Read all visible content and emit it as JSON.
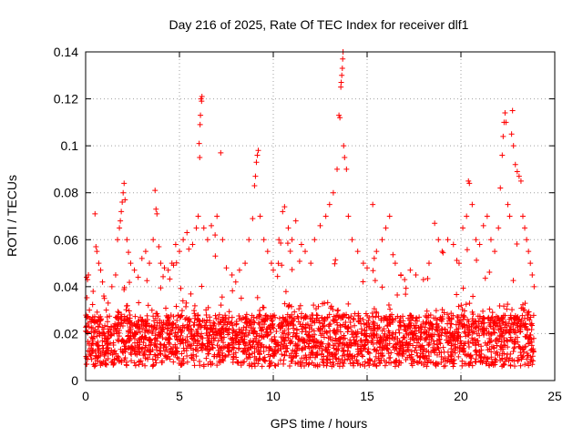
{
  "chart_data": {
    "type": "scatter",
    "title": "Day 216 of 2025, Rate Of TEC Index for receiver dlf1",
    "xlabel": "GPS time / hours",
    "ylabel": "ROTI / TECUs",
    "xlim": [
      0,
      25
    ],
    "ylim": [
      0,
      0.14
    ],
    "xticks": [
      0,
      5,
      10,
      15,
      20,
      25
    ],
    "yticks": [
      0,
      0.02,
      0.04,
      0.06,
      0.08,
      0.1,
      0.12,
      0.14
    ],
    "xtick_labels": [
      "0",
      "5",
      "10",
      "15",
      "20",
      "25"
    ],
    "ytick_labels": [
      "0",
      "0.02",
      "0.04",
      "0.06",
      "0.08",
      "0.1",
      "0.12",
      "0.14"
    ],
    "grid": true,
    "marker": "+",
    "color": "#ff0000",
    "series": [
      {
        "name": "ROTI",
        "points": [
          [
            0.05,
            0.044
          ],
          [
            0.1,
            0.043
          ],
          [
            0.15,
            0.045
          ],
          [
            0.2,
            0.03
          ],
          [
            0.3,
            0.025
          ],
          [
            0.4,
            0.038
          ],
          [
            0.5,
            0.071
          ],
          [
            0.55,
            0.057
          ],
          [
            0.6,
            0.055
          ],
          [
            0.7,
            0.05
          ],
          [
            0.8,
            0.047
          ],
          [
            0.9,
            0.042
          ],
          [
            1.0,
            0.035
          ],
          [
            1.1,
            0.03
          ],
          [
            1.2,
            0.033
          ],
          [
            1.4,
            0.04
          ],
          [
            1.6,
            0.045
          ],
          [
            1.7,
            0.06
          ],
          [
            1.8,
            0.065
          ],
          [
            1.85,
            0.068
          ],
          [
            1.9,
            0.072
          ],
          [
            1.95,
            0.076
          ],
          [
            2.0,
            0.08
          ],
          [
            2.05,
            0.084
          ],
          [
            2.1,
            0.077
          ],
          [
            2.2,
            0.06
          ],
          [
            2.4,
            0.05
          ],
          [
            2.6,
            0.047
          ],
          [
            2.8,
            0.044
          ],
          [
            3.0,
            0.052
          ],
          [
            3.2,
            0.055
          ],
          [
            3.4,
            0.05
          ],
          [
            3.6,
            0.06
          ],
          [
            3.7,
            0.081
          ],
          [
            3.75,
            0.073
          ],
          [
            3.8,
            0.071
          ],
          [
            3.9,
            0.057
          ],
          [
            4.0,
            0.05
          ],
          [
            4.2,
            0.048
          ],
          [
            4.4,
            0.047
          ],
          [
            4.6,
            0.05
          ],
          [
            4.8,
            0.058
          ],
          [
            5.0,
            0.055
          ],
          [
            5.2,
            0.06
          ],
          [
            5.4,
            0.063
          ],
          [
            5.5,
            0.056
          ],
          [
            5.7,
            0.058
          ],
          [
            5.9,
            0.065
          ],
          [
            6.0,
            0.07
          ],
          [
            6.05,
            0.101
          ],
          [
            6.08,
            0.095
          ],
          [
            6.1,
            0.109
          ],
          [
            6.12,
            0.113
          ],
          [
            6.15,
            0.12
          ],
          [
            6.18,
            0.119
          ],
          [
            6.2,
            0.121
          ],
          [
            6.3,
            0.065
          ],
          [
            6.5,
            0.06
          ],
          [
            6.7,
            0.066
          ],
          [
            6.9,
            0.062
          ],
          [
            7.0,
            0.07
          ],
          [
            7.2,
            0.097
          ],
          [
            7.3,
            0.06
          ],
          [
            7.5,
            0.048
          ],
          [
            7.8,
            0.045
          ],
          [
            8.0,
            0.042
          ],
          [
            8.2,
            0.047
          ],
          [
            8.5,
            0.05
          ],
          [
            8.7,
            0.06
          ],
          [
            8.9,
            0.069
          ],
          [
            9.0,
            0.083
          ],
          [
            9.05,
            0.087
          ],
          [
            9.1,
            0.093
          ],
          [
            9.15,
            0.096
          ],
          [
            9.2,
            0.098
          ],
          [
            9.3,
            0.07
          ],
          [
            9.5,
            0.06
          ],
          [
            9.7,
            0.055
          ],
          [
            9.9,
            0.05
          ],
          [
            10.0,
            0.047
          ],
          [
            10.3,
            0.06
          ],
          [
            10.5,
            0.072
          ],
          [
            10.6,
            0.074
          ],
          [
            10.8,
            0.065
          ],
          [
            11.0,
            0.06
          ],
          [
            11.2,
            0.068
          ],
          [
            11.5,
            0.058
          ],
          [
            11.7,
            0.055
          ],
          [
            12.0,
            0.05
          ],
          [
            12.2,
            0.06
          ],
          [
            12.5,
            0.066
          ],
          [
            12.8,
            0.07
          ],
          [
            13.0,
            0.075
          ],
          [
            13.2,
            0.08
          ],
          [
            13.4,
            0.09
          ],
          [
            13.5,
            0.113
          ],
          [
            13.55,
            0.112
          ],
          [
            13.6,
            0.125
          ],
          [
            13.62,
            0.127
          ],
          [
            13.65,
            0.13
          ],
          [
            13.68,
            0.133
          ],
          [
            13.7,
            0.137
          ],
          [
            13.72,
            0.14
          ],
          [
            13.75,
            0.1
          ],
          [
            13.8,
            0.095
          ],
          [
            13.9,
            0.09
          ],
          [
            14.0,
            0.07
          ],
          [
            14.2,
            0.06
          ],
          [
            14.5,
            0.055
          ],
          [
            14.8,
            0.05
          ],
          [
            15.0,
            0.048
          ],
          [
            15.3,
            0.075
          ],
          [
            15.5,
            0.055
          ],
          [
            15.8,
            0.06
          ],
          [
            16.0,
            0.065
          ],
          [
            16.2,
            0.07
          ],
          [
            16.5,
            0.05
          ],
          [
            16.8,
            0.045
          ],
          [
            17.0,
            0.043
          ],
          [
            17.3,
            0.047
          ],
          [
            17.6,
            0.045
          ],
          [
            18.0,
            0.043
          ],
          [
            18.3,
            0.05
          ],
          [
            18.6,
            0.067
          ],
          [
            18.8,
            0.06
          ],
          [
            19.0,
            0.055
          ],
          [
            19.3,
            0.06
          ],
          [
            19.6,
            0.058
          ],
          [
            19.9,
            0.05
          ],
          [
            20.1,
            0.065
          ],
          [
            20.3,
            0.07
          ],
          [
            20.4,
            0.085
          ],
          [
            20.45,
            0.084
          ],
          [
            20.6,
            0.075
          ],
          [
            20.8,
            0.06
          ],
          [
            21.0,
            0.058
          ],
          [
            21.2,
            0.066
          ],
          [
            21.4,
            0.07
          ],
          [
            21.6,
            0.06
          ],
          [
            21.8,
            0.055
          ],
          [
            22.0,
            0.065
          ],
          [
            22.1,
            0.082
          ],
          [
            22.2,
            0.096
          ],
          [
            22.25,
            0.104
          ],
          [
            22.3,
            0.11
          ],
          [
            22.35,
            0.114
          ],
          [
            22.4,
            0.11
          ],
          [
            22.5,
            0.075
          ],
          [
            22.6,
            0.07
          ],
          [
            22.7,
            0.105
          ],
          [
            22.75,
            0.115
          ],
          [
            22.8,
            0.1
          ],
          [
            22.9,
            0.092
          ],
          [
            23.0,
            0.089
          ],
          [
            23.1,
            0.087
          ],
          [
            23.2,
            0.085
          ],
          [
            23.3,
            0.07
          ],
          [
            23.4,
            0.065
          ],
          [
            23.5,
            0.06
          ],
          [
            23.6,
            0.055
          ],
          [
            23.7,
            0.05
          ],
          [
            23.8,
            0.045
          ],
          [
            23.9,
            0.04
          ]
        ]
      }
    ]
  }
}
